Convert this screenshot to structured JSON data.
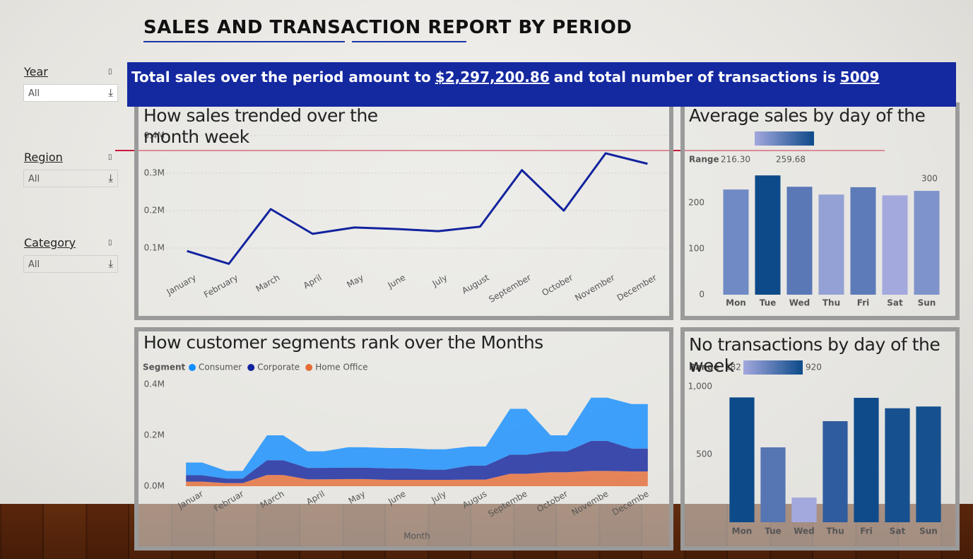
{
  "header": {
    "title": "SALES AND TRANSACTION REPORT BY PERIOD"
  },
  "filters": [
    {
      "label": "Year",
      "value": "All"
    },
    {
      "label": "Region",
      "value": "All"
    },
    {
      "label": "Category",
      "value": "All"
    }
  ],
  "banner": {
    "prefix": "Total sales over the period amount to",
    "sales": "$2,297,200.86",
    "middle": "and total number of transactions is",
    "transactions": "5009"
  },
  "chart_data": [
    {
      "type": "line",
      "title": "How sales trended over the month week",
      "categories": [
        "January",
        "February",
        "March",
        "April",
        "May",
        "June",
        "July",
        "August",
        "September",
        "October",
        "November",
        "December"
      ],
      "values": [
        92000,
        58000,
        204000,
        138000,
        155000,
        151000,
        145000,
        157000,
        308000,
        200000,
        353000,
        325000
      ],
      "color": "#12239e",
      "ylim": [
        0,
        400000
      ],
      "yticks": [
        {
          "value": 100000,
          "label": "0.1M"
        },
        {
          "value": 200000,
          "label": "0.2M"
        },
        {
          "value": 300000,
          "label": "0.3M"
        },
        {
          "value": 400000,
          "label": "0.4M"
        }
      ],
      "grid": true
    },
    {
      "type": "bar",
      "title": "Average sales by day of the",
      "categories": [
        "Mon",
        "Tue",
        "Wed",
        "Thu",
        "Fri",
        "Sat",
        "Sun"
      ],
      "values": [
        229,
        259.68,
        235,
        218,
        234,
        216.3,
        226
      ],
      "colors": [
        "#6f8ac4",
        "#0d4a8a",
        "#5a78b6",
        "#94a1d5",
        "#5d7bb8",
        "#a3a8dd",
        "#7f93cb"
      ],
      "legend": {
        "title": "Range",
        "min": {
          "value": 216.3,
          "label": "216.30"
        },
        "max": {
          "value": 259.68,
          "label": "259.68"
        },
        "colors": [
          "#a3a8dd",
          "#0d4a8a"
        ]
      },
      "annotations": [
        "300"
      ],
      "ylim": [
        0,
        300
      ],
      "yticks": [
        0,
        100,
        200
      ],
      "grid": false
    },
    {
      "type": "area",
      "title": "How customer segments rank over the Months",
      "legend_title": "Segment",
      "x_label": "Month",
      "categories": [
        "Januar",
        "Februar",
        "March",
        "April",
        "May",
        "June",
        "July",
        "Augus",
        "Septembe",
        "October",
        "Novembe",
        "Decembe"
      ],
      "series": [
        {
          "name": "Consumer",
          "color": "#118dff",
          "values": [
            50000,
            30000,
            98000,
            65000,
            80000,
            80000,
            80000,
            75000,
            180000,
            63000,
            170000,
            175000
          ]
        },
        {
          "name": "Corporate",
          "color": "#12239e",
          "values": [
            25000,
            18000,
            58000,
            45000,
            45000,
            45000,
            40000,
            55000,
            75000,
            82000,
            118000,
            90000
          ]
        },
        {
          "name": "Home Office",
          "color": "#e66c37",
          "values": [
            18000,
            12000,
            44000,
            27000,
            28000,
            25000,
            25000,
            26000,
            49000,
            55000,
            60000,
            58000
          ]
        }
      ],
      "ylim": [
        0,
        400000
      ],
      "yticks": [
        {
          "value": 0,
          "label": "0.0M"
        },
        {
          "value": 200000,
          "label": "0.2M"
        },
        {
          "value": 400000,
          "label": "0.4M"
        }
      ],
      "grid": false
    },
    {
      "type": "bar",
      "title": "No transactions by day of the week",
      "categories": [
        "Mon",
        "Tue",
        "Wed",
        "Thu",
        "Fri",
        "Sat",
        "Sun"
      ],
      "values": [
        920,
        552,
        182,
        745,
        917,
        840,
        853
      ],
      "colors": [
        "#0d4a8a",
        "#5575b3",
        "#a3a8dd",
        "#2f5c9e",
        "#0f4b8b",
        "#17508f",
        "#16508e"
      ],
      "legend": {
        "title": "Range",
        "min": 182,
        "max": 920,
        "colors": [
          "#a3a8dd",
          "#0d4a8a"
        ]
      },
      "ylim": [
        0,
        1000
      ],
      "yticks": [
        500,
        {
          "value": 1000,
          "label": "1,000"
        }
      ],
      "grid": false
    }
  ]
}
